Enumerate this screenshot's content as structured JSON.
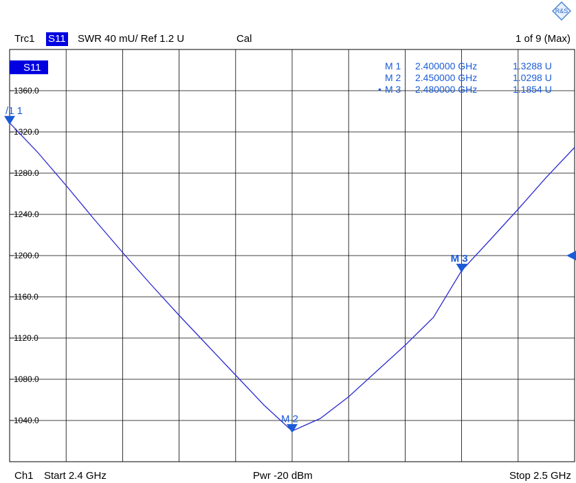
{
  "header": {
    "trace": "Trc1",
    "param": "S11",
    "format": "SWR  40 mU/  Ref 1.2 U",
    "cal": "Cal",
    "count": "1 of 9 (Max)"
  },
  "footer": {
    "channel": "Ch1",
    "start": "Start  2.4 GHz",
    "power": "Pwr  -20 dBm",
    "stop": "Stop  2.5 GHz"
  },
  "plot_label": "S11",
  "markers": [
    {
      "name": "M 1",
      "label": "/1 1",
      "freq": "2.400000 GHz",
      "value": "1.3288 U",
      "active": false
    },
    {
      "name": "M 2",
      "label": "M 2",
      "freq": "2.450000 GHz",
      "value": "1.0298 U",
      "active": false
    },
    {
      "name": "M 3",
      "label": "M 3",
      "freq": "2.480000 GHz",
      "value": "1.1854 U",
      "active": true
    }
  ],
  "colors": {
    "trace": "#2a2ad0",
    "grid": "#000000",
    "marker": "#1a5bd6",
    "label_bg": "#0000e0"
  },
  "chart_data": {
    "type": "line",
    "x_unit": "GHz",
    "xlim": [
      2.4,
      2.5
    ],
    "ylim": [
      1.0,
      1.4
    ],
    "ref_level": 1.2,
    "ytick_labels": [
      "1360.0",
      "1320.0",
      "1280.0",
      "1240.0",
      "1200.0",
      "1160.0",
      "1120.0",
      "1080.0",
      "1040.0"
    ],
    "ytick_values": [
      1.36,
      1.32,
      1.28,
      1.24,
      1.2,
      1.16,
      1.12,
      1.08,
      1.04
    ],
    "series": [
      {
        "x": [
          2.4,
          2.405,
          2.41,
          2.415,
          2.42,
          2.425,
          2.43,
          2.435,
          2.44,
          2.445,
          2.45,
          2.455,
          2.46,
          2.465,
          2.47,
          2.475,
          2.48,
          2.485,
          2.49,
          2.495,
          2.5
        ],
        "y": [
          1.3288,
          1.3,
          1.268,
          1.235,
          1.203,
          1.172,
          1.142,
          1.113,
          1.084,
          1.055,
          1.0298,
          1.042,
          1.063,
          1.088,
          1.113,
          1.14,
          1.1854,
          1.215,
          1.245,
          1.276,
          1.305
        ]
      }
    ],
    "grid": true
  }
}
